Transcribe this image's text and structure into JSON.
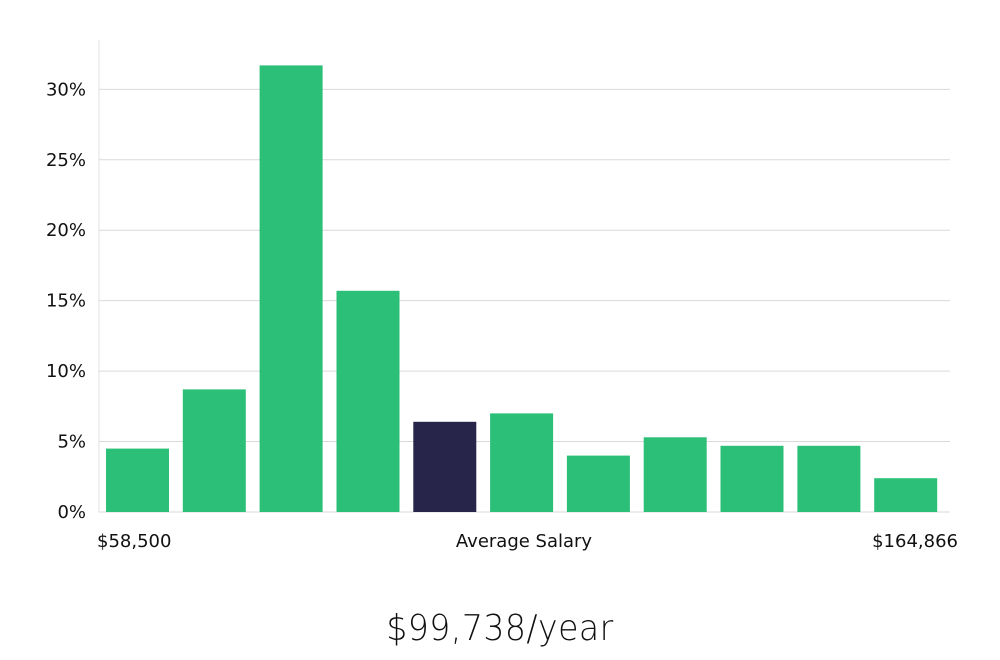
{
  "chart_data": {
    "type": "bar",
    "x_labels": {
      "left": "$58,500",
      "center": "Average Salary",
      "right": "$164,866"
    },
    "values": [
      4.5,
      8.7,
      31.7,
      15.7,
      6.4,
      7.0,
      4.0,
      5.3,
      4.7,
      4.7,
      2.4
    ],
    "highlight_index": 4,
    "y_ticks": [
      "0%",
      "5%",
      "10%",
      "15%",
      "20%",
      "25%",
      "30%"
    ],
    "y_tick_values": [
      0,
      5,
      10,
      15,
      20,
      25,
      30
    ],
    "ylim": [
      0,
      33.5
    ],
    "grid": true,
    "colors": {
      "bar": "#2bbf77",
      "highlight": "#28254a",
      "grid": "#d9d9d9"
    }
  },
  "summary": {
    "salary_text": "$99,738/year"
  }
}
